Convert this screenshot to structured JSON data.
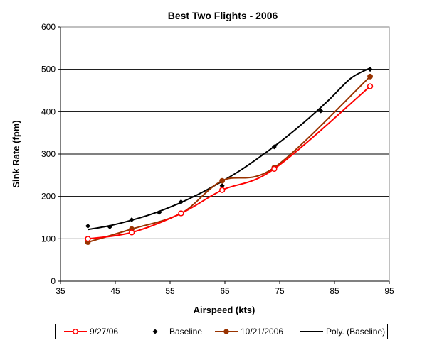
{
  "chart_data": {
    "type": "scatter",
    "title": "Best Two Flights -  2006",
    "xlabel": "Airspeed (kts)",
    "ylabel": "Sink Rate (fpm)",
    "xlim": [
      35,
      95
    ],
    "ylim": [
      0,
      600
    ],
    "xticks": [
      "35",
      "45",
      "55",
      "65",
      "75",
      "85",
      "95"
    ],
    "yticks": [
      "0",
      "100",
      "200",
      "300",
      "400",
      "500",
      "600"
    ],
    "grid": "horizontal",
    "legend_position": "bottom",
    "series": [
      {
        "name": "9/27/06",
        "color": "#ff0000",
        "style": "smoothed line with open circle markers",
        "x": [
          40,
          48,
          57,
          64.5,
          74,
          91.5
        ],
        "y": [
          100,
          115,
          160,
          215,
          265,
          460
        ]
      },
      {
        "name": "Baseline",
        "color": "#000000",
        "style": "diamond markers only",
        "x": [
          40,
          44,
          48,
          53,
          57,
          64.5,
          74,
          82.5,
          91.5
        ],
        "y": [
          130,
          128,
          145,
          162,
          187,
          225,
          317,
          402,
          500
        ]
      },
      {
        "name": "10/21/2006",
        "color": "#993300",
        "style": "smoothed line with filled circle markers",
        "x": [
          40,
          48,
          57,
          64.5,
          74,
          91.5
        ],
        "y": [
          92,
          123,
          160,
          237,
          268,
          483
        ]
      },
      {
        "name": "Poly. (Baseline)",
        "color": "#000000",
        "style": "polynomial trendline",
        "x": [
          40,
          44,
          48,
          52,
          56,
          60,
          64,
          68,
          72,
          76,
          80,
          84,
          88,
          91.5
        ],
        "y": [
          122,
          131,
          144,
          160,
          180,
          204,
          232,
          263,
          299,
          338,
          381,
          428,
          479,
          503
        ]
      }
    ]
  },
  "legend": {
    "items": [
      "9/27/06",
      "Baseline",
      "10/21/2006",
      "Poly. (Baseline)"
    ]
  }
}
